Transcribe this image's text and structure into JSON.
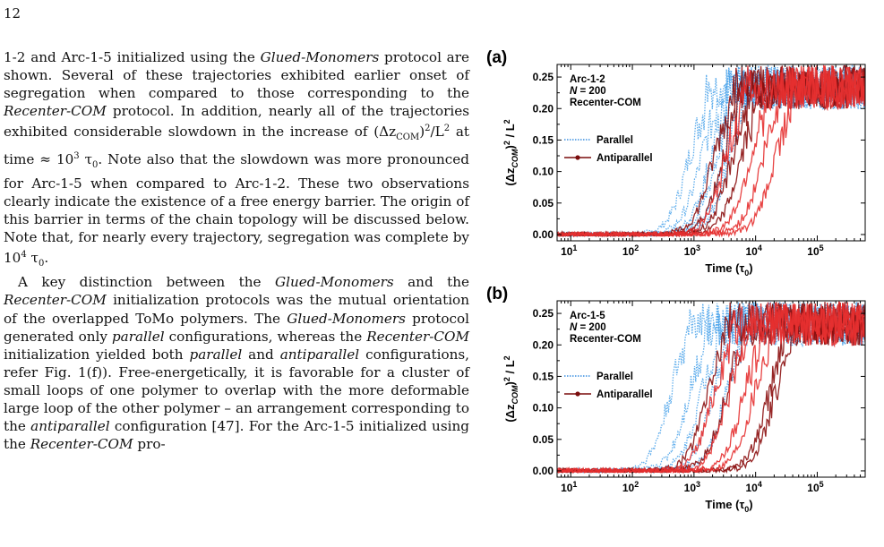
{
  "page_number": "12",
  "text": {
    "p1": [
      {
        "t": "1-2 and Arc-1-5 initialized using the "
      },
      {
        "t": "Glued-Monomers",
        "i": true
      },
      {
        "t": " protocol are shown. Several of these trajectories exhibited earlier onset of segregation when compared to those corresponding to the "
      },
      {
        "t": "Recenter-COM",
        "i": true
      },
      {
        "t": " protocol. In addition, nearly all of the trajectories exhibited considerable slowdown in the increase of (Δz"
      },
      {
        "t": "COM",
        "sub": true
      },
      {
        "t": ")"
      },
      {
        "t": "2",
        "sup": true
      },
      {
        "t": "/L"
      },
      {
        "t": "2",
        "sup": true
      },
      {
        "t": " at time ≈ 10"
      },
      {
        "t": "3",
        "sup": true
      },
      {
        "t": " τ"
      },
      {
        "t": "0",
        "sub": true
      },
      {
        "t": ". Note also that the slowdown was more pronounced for Arc-1-5 when compared to Arc-1-2. These two observations clearly indicate the existence of a free energy barrier. The origin of this barrier in terms of the chain topology will be discussed below. Note that, for nearly every trajectory, segregation was complete by 10"
      },
      {
        "t": "4",
        "sup": true
      },
      {
        "t": " τ"
      },
      {
        "t": "0",
        "sub": true
      },
      {
        "t": "."
      }
    ],
    "p2": [
      {
        "t": "A key distinction between the "
      },
      {
        "t": "Glued-Monomers",
        "i": true
      },
      {
        "t": " and the "
      },
      {
        "t": "Recenter-COM",
        "i": true
      },
      {
        "t": " initialization protocols was the mutual orientation of the overlapped ToMo polymers. The "
      },
      {
        "t": "Glued-Monomers",
        "i": true
      },
      {
        "t": " protocol generated only "
      },
      {
        "t": "parallel",
        "i": true
      },
      {
        "t": " configurations, whereas the "
      },
      {
        "t": "Recenter-COM",
        "i": true
      },
      {
        "t": " initialization yielded both "
      },
      {
        "t": "parallel",
        "i": true
      },
      {
        "t": " and "
      },
      {
        "t": "antiparallel",
        "i": true
      },
      {
        "t": " configurations, refer Fig. 1(f)). Free-energetically, it is favorable for a cluster of small loops of one polymer to overlap with the more deformable large loop of the other polymer – an arrangement corresponding to the "
      },
      {
        "t": "antiparallel",
        "i": true
      },
      {
        "t": " configuration [47]. For the Arc-1-5 initialized using the "
      },
      {
        "t": "Recenter-COM",
        "i": true
      },
      {
        "t": " pro-"
      }
    ]
  },
  "chart_data": [
    {
      "type": "line",
      "panel_label": "(a)",
      "annotation": [
        "Arc-1-2",
        "N = 200",
        "Recenter-COM"
      ],
      "xlabel": "Time (τ0)",
      "ylabel": "(ΔzCOM)^2 / L^2",
      "x_scale": "log",
      "xlim": [
        6,
        600000
      ],
      "ylim": [
        -0.01,
        0.27
      ],
      "x_ticks": [
        "10^1",
        "10^2",
        "10^3",
        "10^4",
        "10^5"
      ],
      "y_ticks": [
        "0.00",
        "0.05",
        "0.10",
        "0.15",
        "0.20",
        "0.25"
      ],
      "legend": [
        {
          "name": "Parallel",
          "style": "dotted",
          "color": "#3b8fe0"
        },
        {
          "name": "Antiparallel",
          "style": "solid-marker",
          "color": "#7a0c0c"
        }
      ],
      "plateau": 0.23,
      "series_groups": [
        {
          "name": "Parallel",
          "color": "#4aa3ea",
          "style": "dotted",
          "midpoints_log10": [
            2.9,
            3.1,
            3.25,
            3.35,
            3.45,
            3.55
          ]
        },
        {
          "name": "Antiparallel",
          "color": "#8b0e0e",
          "style": "solid",
          "midpoints_log10": [
            3.3,
            3.45,
            3.6,
            3.75
          ]
        },
        {
          "name": "Antiparallel",
          "color": "#e53030",
          "style": "solid",
          "midpoints_log10": [
            3.5,
            3.9,
            4.1,
            4.3
          ]
        }
      ]
    },
    {
      "type": "line",
      "panel_label": "(b)",
      "annotation": [
        "Arc-1-5",
        "N = 200",
        "Recenter-COM"
      ],
      "xlabel": "Time (τ0)",
      "ylabel": "(ΔzCOM)^2 / L^2",
      "x_scale": "log",
      "xlim": [
        6,
        600000
      ],
      "ylim": [
        -0.01,
        0.27
      ],
      "x_ticks": [
        "10^1",
        "10^2",
        "10^3",
        "10^4",
        "10^5"
      ],
      "y_ticks": [
        "0.00",
        "0.05",
        "0.10",
        "0.15",
        "0.20",
        "0.25"
      ],
      "legend": [
        {
          "name": "Parallel",
          "style": "dotted",
          "color": "#3b8fe0"
        },
        {
          "name": "Antiparallel",
          "style": "solid-marker",
          "color": "#7a0c0c"
        }
      ],
      "plateau": 0.23,
      "series_groups": [
        {
          "name": "Parallel",
          "color": "#4aa3ea",
          "style": "dotted",
          "midpoints_log10": [
            2.6,
            2.9,
            3.1,
            3.3,
            3.5
          ]
        },
        {
          "name": "Antiparallel",
          "color": "#8b0e0e",
          "style": "solid",
          "midpoints_log10": [
            3.2,
            3.5,
            4.2,
            4.3
          ]
        },
        {
          "name": "Antiparallel",
          "color": "#e53030",
          "style": "solid",
          "midpoints_log10": [
            3.3,
            3.55,
            3.8,
            3.95
          ]
        }
      ]
    }
  ]
}
